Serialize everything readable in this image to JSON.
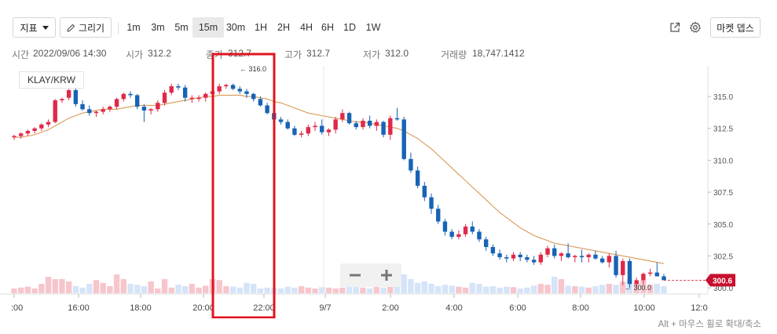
{
  "toolbar": {
    "indicator_label": "지표",
    "draw_label": "그리기",
    "intervals": [
      "1m",
      "3m",
      "5m",
      "15m",
      "30m",
      "1H",
      "2H",
      "4H",
      "6H",
      "1D",
      "1W"
    ],
    "active_interval": "15m",
    "market_depth_label": "마켓 뎁스",
    "icons": [
      "external-link-icon",
      "gear-icon"
    ]
  },
  "ohlc": {
    "time_label": "시간",
    "time_value": "2022/09/06 14:30",
    "open_label": "시가",
    "open_value": "312.2",
    "close_label": "종가",
    "close_value": "312.7",
    "high_label": "고가",
    "high_value": "312.7",
    "low_label": "저가",
    "low_value": "312.0",
    "volume_label": "거래량",
    "volume_value": "18,747.1412"
  },
  "symbol": "KLAY/KRW",
  "hint": "Alt + 마우스 휠로 확대/축소",
  "zoom": {
    "minus": "−",
    "plus": "+"
  },
  "colors": {
    "up": "#e0294a",
    "down": "#1763b6",
    "ma_line": "#d89a58",
    "price_tag": "#c8102e",
    "annotation_box": "#e0141e",
    "up_volume": "#f6c6cc",
    "down_volume": "#d5e4f8"
  },
  "chart_data": {
    "type": "candlestick",
    "x_ticks": [
      ":00",
      "16:00",
      "18:00",
      "20:00",
      "22:00",
      "9/7",
      "2:00",
      "4:00",
      "6:00",
      "8:00",
      "10:00",
      "12:0"
    ],
    "y_ticks": [
      "315.0",
      "312.5",
      "310.0",
      "307.5",
      "305.0",
      "302.5",
      "300.0"
    ],
    "ylim": [
      299.7,
      317.4
    ],
    "current_price": "300.6",
    "high_marker": "316.0",
    "low_marker": "300.0",
    "candles": [
      [
        311.8,
        312.0,
        311.6,
        311.9
      ],
      [
        311.9,
        312.2,
        311.7,
        312.1
      ],
      [
        312.1,
        312.4,
        311.9,
        312.3
      ],
      [
        312.3,
        312.6,
        312.1,
        312.5
      ],
      [
        312.5,
        312.9,
        312.3,
        312.8
      ],
      [
        312.8,
        313.2,
        312.6,
        313.0
      ],
      [
        313.0,
        314.8,
        312.9,
        314.7
      ],
      [
        314.7,
        314.9,
        314.5,
        314.8
      ],
      [
        314.9,
        315.6,
        314.7,
        315.5
      ],
      [
        315.5,
        315.7,
        314.2,
        314.4
      ],
      [
        314.4,
        314.7,
        313.9,
        314.0
      ],
      [
        314.0,
        314.3,
        313.5,
        313.7
      ],
      [
        313.7,
        313.9,
        313.4,
        313.8
      ],
      [
        313.8,
        314.2,
        313.6,
        314.0
      ],
      [
        314.0,
        314.3,
        313.8,
        314.2
      ],
      [
        314.2,
        314.9,
        314.0,
        314.8
      ],
      [
        314.8,
        315.3,
        314.6,
        315.2
      ],
      [
        315.2,
        315.4,
        314.9,
        315.1
      ],
      [
        315.1,
        315.2,
        314.0,
        314.2
      ],
      [
        314.2,
        314.4,
        313.0,
        313.9
      ],
      [
        313.9,
        314.1,
        313.6,
        314.0
      ],
      [
        314.0,
        314.7,
        313.8,
        314.5
      ],
      [
        314.5,
        315.5,
        314.3,
        315.3
      ],
      [
        315.3,
        316.0,
        315.1,
        315.8
      ],
      [
        315.8,
        316.0,
        315.5,
        315.7
      ],
      [
        315.7,
        315.9,
        314.6,
        314.9
      ],
      [
        314.9,
        315.1,
        314.5,
        314.9
      ],
      [
        314.9,
        315.1,
        314.6,
        314.9
      ],
      [
        314.9,
        315.3,
        314.6,
        315.2
      ],
      [
        315.2,
        315.7,
        315.0,
        315.4
      ],
      [
        315.4,
        316.0,
        315.2,
        315.8
      ],
      [
        315.8,
        316.0,
        315.6,
        315.9
      ],
      [
        315.9,
        316.0,
        315.5,
        315.6
      ],
      [
        315.6,
        315.8,
        315.2,
        315.4
      ],
      [
        315.4,
        315.6,
        314.9,
        315.2
      ],
      [
        315.2,
        315.3,
        314.6,
        314.8
      ],
      [
        314.8,
        315.0,
        314.2,
        314.3
      ],
      [
        314.3,
        314.5,
        313.6,
        313.7
      ],
      [
        313.7,
        313.9,
        313.1,
        313.2
      ],
      [
        313.2,
        313.4,
        312.8,
        313.0
      ],
      [
        313.0,
        313.2,
        312.4,
        312.5
      ],
      [
        312.5,
        312.7,
        311.9,
        312.0
      ],
      [
        312.0,
        312.3,
        311.8,
        312.1
      ],
      [
        312.1,
        312.8,
        311.9,
        312.6
      ],
      [
        312.6,
        313.0,
        312.3,
        312.7
      ],
      [
        312.7,
        313.2,
        312.0,
        312.2
      ],
      [
        312.2,
        312.5,
        311.9,
        312.4
      ],
      [
        312.4,
        313.4,
        312.1,
        313.2
      ],
      [
        313.2,
        314.0,
        313.0,
        313.7
      ],
      [
        313.7,
        313.8,
        312.8,
        312.9
      ],
      [
        312.9,
        313.1,
        312.4,
        312.6
      ],
      [
        312.6,
        313.3,
        312.4,
        313.1
      ],
      [
        313.1,
        313.5,
        312.5,
        312.7
      ],
      [
        312.7,
        313.2,
        312.3,
        313.0
      ],
      [
        313.0,
        313.1,
        311.8,
        312.0
      ],
      [
        312.0,
        313.5,
        311.6,
        313.3
      ],
      [
        313.3,
        314.1,
        313.1,
        313.2
      ],
      [
        313.2,
        313.4,
        310.0,
        310.1
      ],
      [
        310.1,
        310.6,
        309.0,
        309.2
      ],
      [
        309.2,
        309.5,
        307.8,
        308.0
      ],
      [
        308.0,
        308.3,
        306.8,
        307.1
      ],
      [
        307.1,
        307.4,
        305.8,
        306.2
      ],
      [
        306.2,
        306.5,
        305.0,
        305.2
      ],
      [
        305.2,
        305.4,
        304.1,
        304.4
      ],
      [
        304.4,
        304.6,
        303.8,
        304.0
      ],
      [
        304.0,
        304.5,
        303.8,
        304.2
      ],
      [
        304.2,
        305.0,
        304.0,
        304.8
      ],
      [
        304.8,
        305.2,
        304.2,
        304.4
      ],
      [
        304.4,
        304.6,
        303.6,
        303.8
      ],
      [
        303.8,
        304.0,
        302.9,
        303.2
      ],
      [
        303.2,
        303.4,
        302.5,
        302.7
      ],
      [
        302.7,
        303.0,
        302.2,
        302.4
      ],
      [
        302.4,
        302.6,
        302.0,
        302.3
      ],
      [
        302.3,
        302.8,
        302.1,
        302.6
      ],
      [
        302.6,
        302.8,
        302.1,
        302.4
      ],
      [
        302.4,
        302.6,
        302.0,
        302.2
      ],
      [
        302.2,
        302.5,
        301.8,
        302.0
      ],
      [
        302.0,
        302.8,
        301.8,
        302.6
      ],
      [
        302.6,
        303.3,
        302.4,
        303.1
      ],
      [
        303.1,
        303.4,
        302.3,
        302.5
      ],
      [
        302.5,
        302.8,
        302.1,
        302.7
      ],
      [
        302.7,
        303.5,
        302.3,
        302.4
      ],
      [
        302.4,
        302.6,
        302.0,
        302.5
      ],
      [
        302.5,
        303.0,
        302.0,
        302.4
      ],
      [
        302.4,
        302.7,
        302.0,
        302.6
      ],
      [
        302.6,
        302.9,
        302.2,
        302.3
      ],
      [
        302.3,
        302.5,
        301.9,
        302.0
      ],
      [
        302.0,
        302.7,
        301.6,
        302.5
      ],
      [
        302.5,
        302.9,
        300.8,
        301.0
      ],
      [
        301.0,
        302.3,
        300.2,
        302.1
      ],
      [
        302.1,
        302.3,
        300.0,
        300.3
      ],
      [
        300.3,
        300.8,
        300.1,
        300.6
      ],
      [
        300.6,
        301.2,
        300.3,
        301.1
      ],
      [
        301.1,
        301.5,
        300.9,
        301.2
      ],
      [
        301.2,
        302.0,
        301.0,
        300.9
      ],
      [
        300.9,
        301.1,
        300.6,
        300.6
      ]
    ],
    "ma": [
      311.8,
      311.8,
      311.9,
      312.0,
      312.2,
      312.4,
      312.7,
      313.0,
      313.3,
      313.5,
      313.7,
      313.8,
      313.9,
      314.0,
      314.0,
      314.0,
      314.1,
      314.2,
      314.3,
      314.3,
      314.3,
      314.3,
      314.4,
      314.5,
      314.6,
      314.7,
      314.8,
      314.9,
      315.0,
      315.0,
      315.1,
      315.1,
      315.1,
      315.1,
      315.0,
      315.0,
      314.9,
      314.8,
      314.6,
      314.5,
      314.3,
      314.1,
      313.9,
      313.7,
      313.6,
      313.5,
      313.4,
      313.3,
      313.2,
      313.1,
      313.0,
      313.0,
      312.9,
      312.8,
      312.7,
      312.6,
      312.5,
      312.3,
      312.0,
      311.7,
      311.3,
      310.9,
      310.4,
      309.9,
      309.4,
      308.9,
      308.4,
      307.9,
      307.4,
      306.9,
      306.4,
      305.9,
      305.5,
      305.1,
      304.7,
      304.4,
      304.1,
      303.9,
      303.7,
      303.5,
      303.4,
      303.3,
      303.2,
      303.1,
      303.0,
      302.9,
      302.8,
      302.7,
      302.6,
      302.5,
      302.4,
      302.3,
      302.2,
      302.1,
      302.0,
      301.9
    ],
    "volumes": [
      0.1,
      0.12,
      0.14,
      0.1,
      0.2,
      0.35,
      0.3,
      0.3,
      0.25,
      0.15,
      0.12,
      0.2,
      0.28,
      0.22,
      0.15,
      0.4,
      0.3,
      0.2,
      0.18,
      0.15,
      0.25,
      0.1,
      0.3,
      0.12,
      0.18,
      0.15,
      0.2,
      0.12,
      0.16,
      0.3,
      0.28,
      0.15,
      0.14,
      0.12,
      0.22,
      0.2,
      0.1,
      0.12,
      0.11,
      0.1,
      0.14,
      0.12,
      0.15,
      0.12,
      0.1,
      0.13,
      0.12,
      0.1,
      0.12,
      0.15,
      0.2,
      0.12,
      0.1,
      0.14,
      0.12,
      0.18,
      0.15,
      0.4,
      0.3,
      0.22,
      0.25,
      0.2,
      0.15,
      0.18,
      0.16,
      0.14,
      0.12,
      0.22,
      0.2,
      0.14,
      0.15,
      0.12,
      0.14,
      0.13,
      0.1,
      0.12,
      0.16,
      0.2,
      0.18,
      0.35,
      0.3,
      0.16,
      0.15,
      0.14,
      0.12,
      0.15,
      0.18,
      0.2,
      0.18,
      0.25,
      0.3,
      0.22,
      0.28,
      0.18,
      0.2,
      0.15
    ]
  },
  "annotation": {
    "type": "red-rectangle",
    "note": ""
  }
}
